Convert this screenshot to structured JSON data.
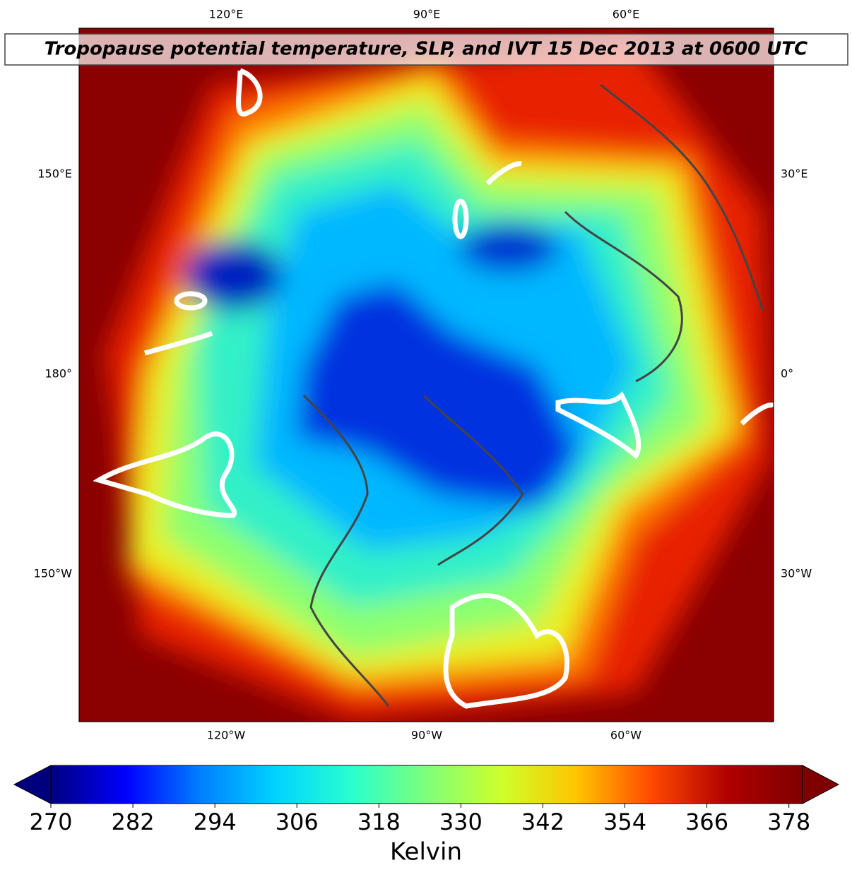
{
  "map": {
    "title": "Tropopause potential temperature, SLP, and IVT 15 Dec 2013 at 0600 UTC",
    "top_labels": [
      "120°E",
      "90°E",
      "60°E"
    ],
    "bottom_labels": [
      "120°W",
      "90°W",
      "60°W"
    ],
    "left_labels": [
      "150°E",
      "180°",
      "150°W"
    ],
    "right_labels": [
      "30°E",
      "0°",
      "30°W"
    ]
  },
  "colorbar": {
    "label": "Kelvin",
    "lim": [
      270,
      380
    ],
    "ticks": [
      270,
      282,
      294,
      306,
      318,
      330,
      342,
      354,
      366,
      378
    ],
    "colormap": [
      "#00007f",
      "#0000ff",
      "#0080ff",
      "#00d4ff",
      "#29ffce",
      "#7dff7a",
      "#ceff29",
      "#ffc400",
      "#ff4800",
      "#b00000",
      "#7f0000"
    ]
  }
}
